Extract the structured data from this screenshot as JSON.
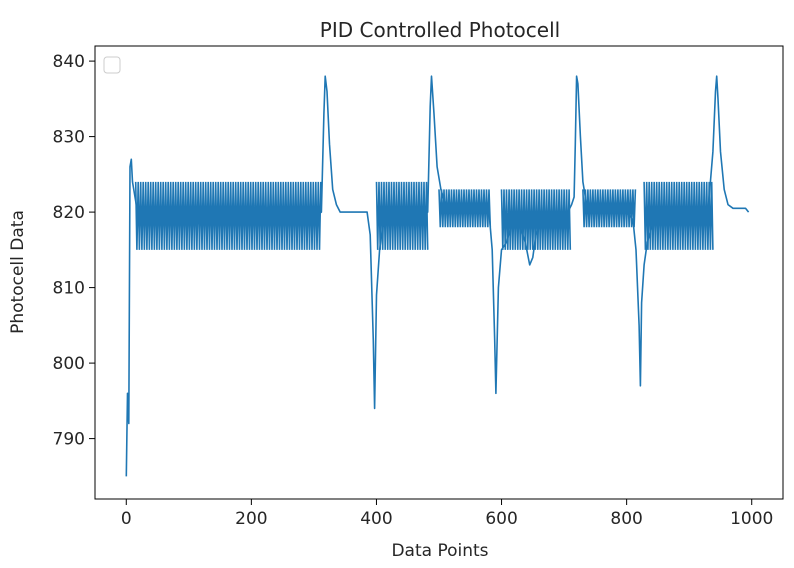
{
  "chart_data": {
    "type": "line",
    "title": "PID Controlled Photocell",
    "xlabel": "Data Points",
    "ylabel": "Photocell Data",
    "xlim": [
      -50,
      1050
    ],
    "ylim": [
      782,
      842
    ],
    "xticks": [
      0,
      200,
      400,
      600,
      800,
      1000
    ],
    "yticks": [
      790,
      800,
      810,
      820,
      830,
      840
    ],
    "grid": false,
    "legend": {
      "placement": "top-left",
      "entries": []
    },
    "colors": {
      "line": "#1f77b4",
      "axes": "#000000",
      "text": "#262626"
    },
    "series": [
      {
        "x": [
          0,
          2,
          4,
          6,
          8,
          10,
          14,
          18,
          24,
          30,
          40,
          60,
          80,
          100,
          120,
          140,
          160,
          180,
          200,
          220,
          240,
          260,
          280,
          300,
          312,
          316,
          318,
          321,
          325,
          330,
          336,
          342,
          350,
          360,
          370,
          378,
          385,
          390,
          395,
          397,
          400,
          405,
          410,
          418,
          428,
          440,
          450,
          460,
          470,
          482,
          486,
          488,
          492,
          497,
          503,
          510,
          518,
          528,
          540,
          555,
          570,
          580,
          585,
          589,
          591,
          595,
          600,
          608,
          615,
          620,
          625,
          630,
          638,
          645,
          650,
          655,
          660,
          668,
          680,
          692,
          700,
          706,
          712,
          716,
          718,
          720,
          722,
          726,
          730,
          735,
          740,
          746,
          752,
          760,
          770,
          780,
          790,
          800,
          810,
          815,
          820,
          822,
          824,
          828,
          833,
          840,
          848,
          858,
          870,
          885,
          900,
          915,
          930,
          938,
          942,
          944,
          946,
          950,
          956,
          962,
          970,
          980,
          990,
          995
        ],
        "y": [
          785,
          796,
          792,
          826,
          827,
          824,
          822,
          820,
          820,
          819.5,
          819.5,
          819.5,
          819.5,
          819.5,
          819.5,
          819.5,
          819,
          819,
          819.5,
          819.5,
          819.5,
          819.5,
          819.5,
          819.5,
          820,
          833,
          838,
          836,
          829,
          823,
          821,
          820,
          820,
          820,
          820,
          820,
          820,
          817,
          803,
          794,
          809,
          815,
          818,
          819,
          819.5,
          819.5,
          819.5,
          819.5,
          819.5,
          820,
          834,
          838,
          833,
          826,
          823,
          821,
          820,
          820,
          820,
          820,
          820,
          820,
          815,
          803,
          796,
          810,
          815,
          816,
          818,
          819,
          820,
          818,
          816,
          813,
          814,
          817,
          818,
          818,
          818,
          818.5,
          820,
          820,
          821,
          822,
          829,
          838,
          837,
          830,
          824,
          821.5,
          820.5,
          820,
          820,
          820,
          820,
          820,
          820,
          820,
          819,
          815,
          805,
          797,
          808,
          813,
          816,
          818,
          819,
          819.5,
          819.5,
          819.5,
          819.5,
          819.5,
          820,
          828,
          836,
          838,
          835,
          828,
          823,
          821,
          820.5,
          820.5,
          820.5,
          820
        ]
      }
    ],
    "noise_segments": [
      {
        "x": [
          15,
          312
        ],
        "y": [
          815,
          824
        ]
      },
      {
        "x": [
          400,
          482
        ],
        "y": [
          815,
          824
        ]
      },
      {
        "x": [
          500,
          582
        ],
        "y": [
          818,
          823
        ]
      },
      {
        "x": [
          600,
          710
        ],
        "y": [
          815,
          823
        ]
      },
      {
        "x": [
          730,
          815
        ],
        "y": [
          818,
          823
        ]
      },
      {
        "x": [
          828,
          938
        ],
        "y": [
          815,
          824
        ]
      }
    ]
  }
}
